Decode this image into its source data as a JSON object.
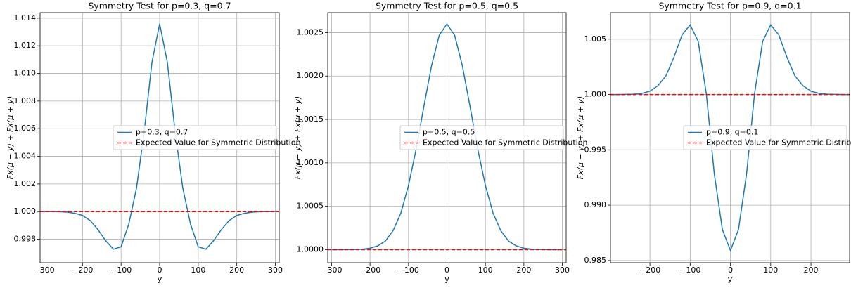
{
  "chart_data": [
    {
      "type": "line",
      "title": "Symmetry Test for p=0.3, q=0.7",
      "xlabel": "y",
      "ylabel": "Fx(μ − y) + Fx(μ + y)",
      "x": [
        -300,
        -280,
        -260,
        -240,
        -220,
        -200,
        -180,
        -160,
        -140,
        -120,
        -100,
        -80,
        -60,
        -40,
        -20,
        0,
        20,
        40,
        60,
        80,
        100,
        120,
        140,
        160,
        180,
        200,
        220,
        240,
        260,
        280,
        300
      ],
      "series": [
        {
          "name": "p=0.3, q=0.7",
          "color": "#1f77b4",
          "values": [
            1.0,
            1.0,
            0.99999,
            0.99996,
            0.99988,
            0.99972,
            0.99935,
            0.9987,
            0.9979,
            0.99728,
            0.99745,
            0.9991,
            1.0017,
            1.0058,
            1.0108,
            1.0136,
            1.0108,
            1.0058,
            1.0017,
            0.9991,
            0.99745,
            0.99728,
            0.9979,
            0.9987,
            0.99935,
            0.99972,
            0.99988,
            0.99996,
            0.99999,
            1.0,
            1.0
          ]
        }
      ],
      "reference": {
        "name": "Expected Value for Symmetric Distribution",
        "value": 1,
        "color": "#ff0000"
      },
      "xlim": [
        -310,
        310
      ],
      "ylim": [
        0.9963,
        1.0144
      ],
      "xticks": [
        {
          "value": -300,
          "label": "−300"
        },
        {
          "value": -200,
          "label": "−200"
        },
        {
          "value": -100,
          "label": "−100"
        },
        0,
        100,
        200,
        300
      ],
      "yticks": [
        {
          "value": 0.998,
          "label": "0.998"
        },
        {
          "value": 1.0,
          "label": "1.000"
        },
        {
          "value": 1.002,
          "label": "1.002"
        },
        {
          "value": 1.004,
          "label": "1.004"
        },
        {
          "value": 1.006,
          "label": "1.006"
        },
        {
          "value": 1.008,
          "label": "1.008"
        },
        {
          "value": 1.01,
          "label": "1.010"
        },
        {
          "value": 1.012,
          "label": "1.012"
        },
        {
          "value": 1.014,
          "label": "1.014"
        }
      ],
      "grid": true,
      "legend": "center right"
    },
    {
      "type": "line",
      "title": "Symmetry Test for p=0.5, q=0.5",
      "xlabel": "y",
      "ylabel": "Fx(μ − y) + Fx(μ + y)",
      "x": [
        -300,
        -280,
        -260,
        -240,
        -220,
        -200,
        -180,
        -160,
        -140,
        -120,
        -100,
        -80,
        -60,
        -40,
        -20,
        0,
        20,
        40,
        60,
        80,
        100,
        120,
        140,
        160,
        180,
        200,
        220,
        240,
        260,
        280,
        300
      ],
      "series": [
        {
          "name": "p=0.5, q=0.5",
          "color": "#1f77b4",
          "values": [
            1.0,
            1.0,
            1.0000005,
            1.000002,
            1.000006,
            1.000017,
            1.000044,
            1.0001,
            1.00022,
            1.00042,
            1.00074,
            1.00116,
            1.00165,
            1.00212,
            1.00247,
            1.0026,
            1.00247,
            1.00212,
            1.00165,
            1.00116,
            1.00074,
            1.00042,
            1.00022,
            1.0001,
            1.000044,
            1.000017,
            1.000006,
            1.000002,
            1.0000005,
            1.0,
            1.0
          ]
        }
      ],
      "reference": {
        "name": "Expected Value for Symmetric Distribution",
        "value": 1,
        "color": "#ff0000"
      },
      "xlim": [
        -310,
        310
      ],
      "ylim": [
        0.99985,
        1.00273
      ],
      "xticks": [
        {
          "value": -300,
          "label": "−300"
        },
        {
          "value": -200,
          "label": "−200"
        },
        {
          "value": -100,
          "label": "−100"
        },
        0,
        100,
        200,
        300
      ],
      "yticks": [
        {
          "value": 1.0,
          "label": "1.0000"
        },
        {
          "value": 1.0005,
          "label": "1.0005"
        },
        {
          "value": 1.001,
          "label": "1.0010"
        },
        {
          "value": 1.0015,
          "label": "1.0015"
        },
        {
          "value": 1.002,
          "label": "1.0020"
        },
        {
          "value": 1.0025,
          "label": "1.0025"
        }
      ],
      "grid": true,
      "legend": "center right"
    },
    {
      "type": "line",
      "title": "Symmetry Test for p=0.9, q=0.1",
      "xlabel": "y",
      "ylabel": "Fx(μ − y) + Fx(μ + y)",
      "x": [
        -300,
        -280,
        -260,
        -240,
        -220,
        -200,
        -180,
        -160,
        -140,
        -120,
        -100,
        -80,
        -60,
        -40,
        -20,
        0,
        20,
        40,
        60,
        80,
        100,
        120,
        140,
        160,
        180,
        200,
        220,
        240,
        260,
        280,
        300
      ],
      "series": [
        {
          "name": "p=0.9, q=0.1",
          "color": "#1f77b4",
          "values": [
            1.0,
            1.0,
            1.00001,
            1.00003,
            1.0001,
            1.0003,
            1.0008,
            1.0017,
            1.0034,
            1.0054,
            1.0063,
            1.0048,
            1.0001,
            0.9928,
            0.9878,
            0.9859,
            0.9878,
            0.9928,
            1.0001,
            1.0048,
            1.0063,
            1.0054,
            1.0034,
            1.0017,
            1.0008,
            1.0003,
            1.0001,
            1.00003,
            1.00001,
            1.0,
            1.0
          ]
        }
      ],
      "reference": {
        "name": "Expected Value for Symmetric Distribution",
        "value": 1,
        "color": "#ff0000"
      },
      "xlim": [
        -298,
        296
      ],
      "ylim": [
        0.9848,
        1.0074
      ],
      "xticks": [
        {
          "value": -200,
          "label": "−200"
        },
        {
          "value": -100,
          "label": "−100"
        },
        0,
        100,
        200
      ],
      "yticks": [
        {
          "value": 0.985,
          "label": "0.985"
        },
        {
          "value": 0.99,
          "label": "0.990"
        },
        {
          "value": 0.995,
          "label": "0.995"
        },
        {
          "value": 1.0,
          "label": "1.000"
        },
        {
          "value": 1.005,
          "label": "1.005"
        }
      ],
      "grid": true,
      "legend": "center right"
    }
  ]
}
